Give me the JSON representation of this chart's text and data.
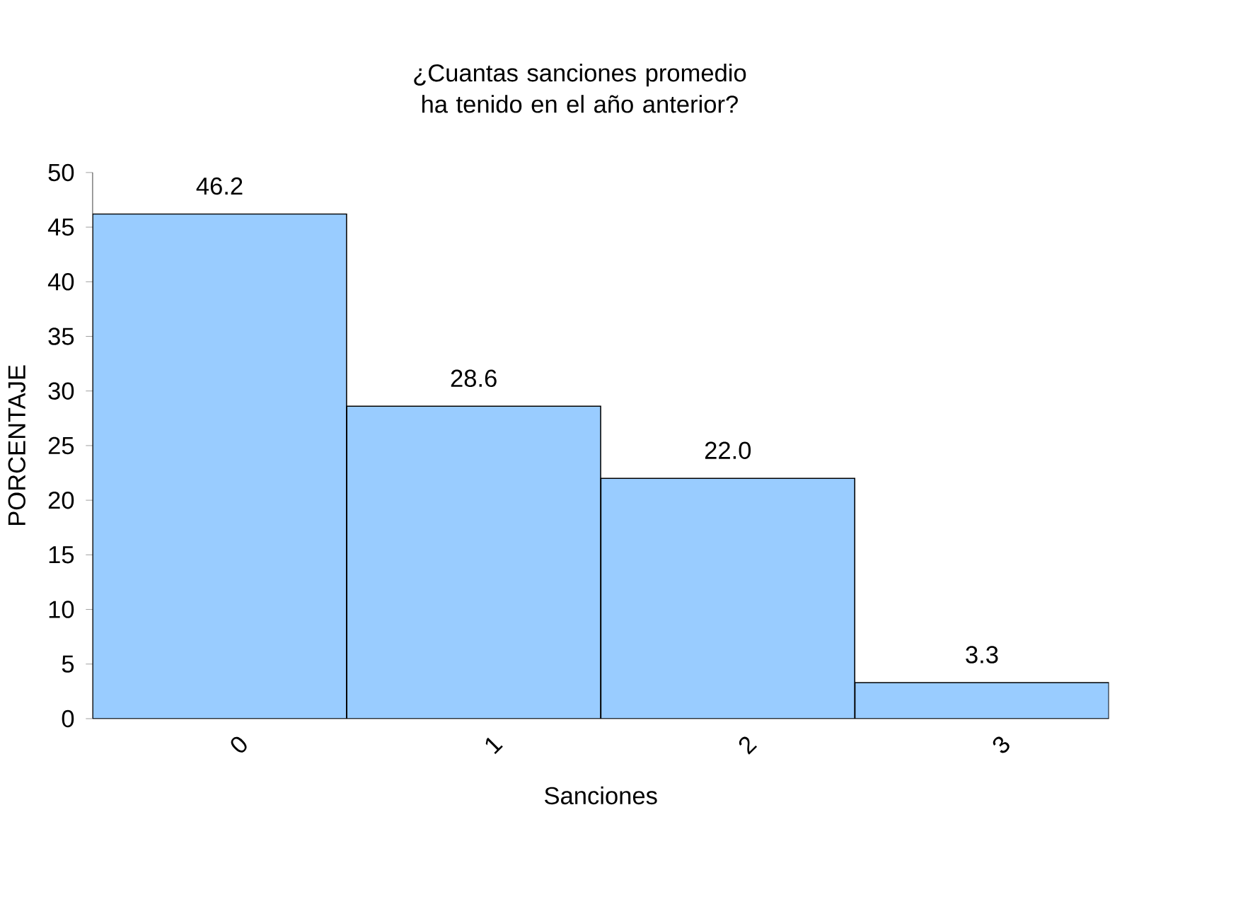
{
  "chart_data": {
    "type": "bar",
    "title": "¿Cuantas sanciones promedio ha tenido en el año anterior?",
    "xlabel": "Sanciones",
    "ylabel": "PORCENTAJE",
    "categories": [
      "0",
      "1",
      "2",
      "3"
    ],
    "values": [
      46.2,
      28.6,
      22.0,
      3.3
    ],
    "color": "#99ccff",
    "ylim": [
      0,
      50
    ],
    "yticks": [
      0,
      5,
      10,
      15,
      20,
      25,
      30,
      35,
      40,
      45,
      50
    ],
    "value_labels": [
      "46.2",
      "28.6",
      "22.0",
      "3.3"
    ]
  }
}
